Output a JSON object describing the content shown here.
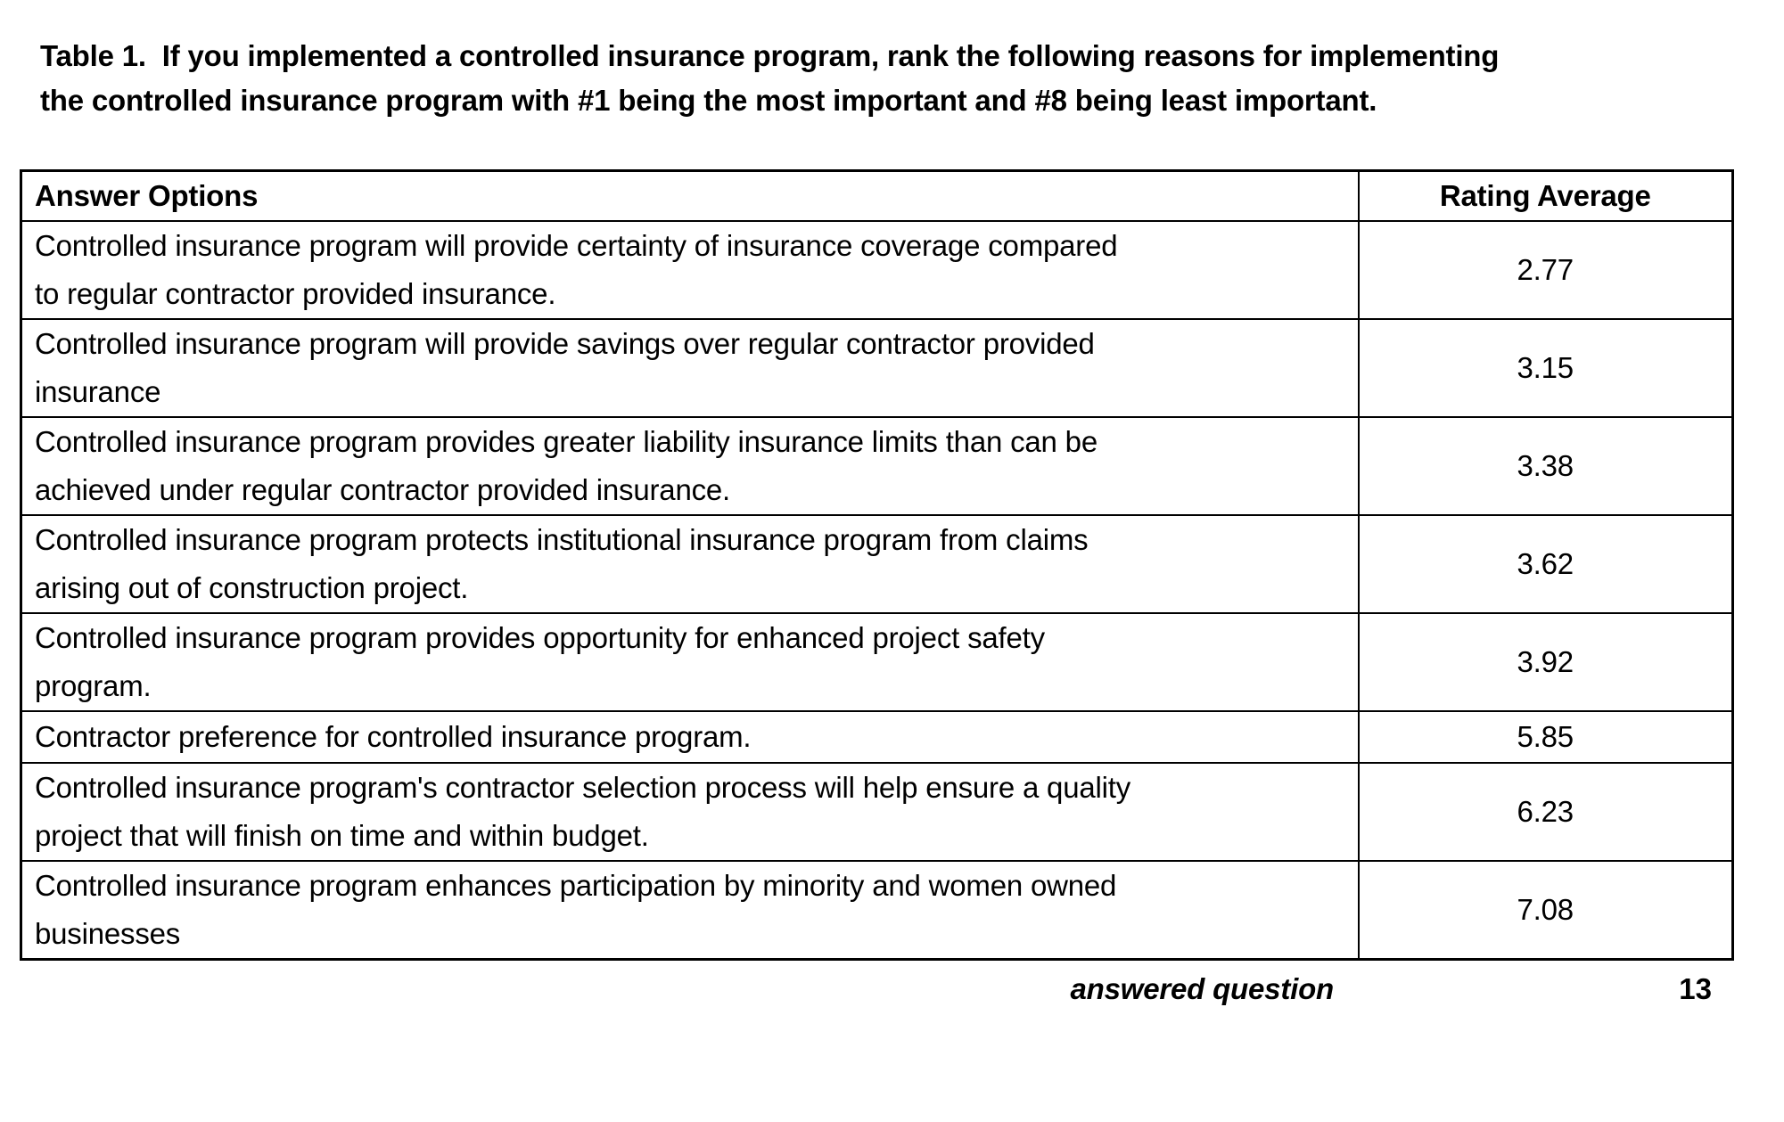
{
  "page": {
    "background_color": "#ffffff",
    "text_color": "#000000",
    "border_color": "#000000"
  },
  "title": "Table 1.  If you implemented a controlled insurance program, rank the following reasons for implementing\nthe controlled insurance program with #1 being the most important and #8 being least important.",
  "table": {
    "headers": {
      "answer_options": "Answer Options",
      "rating_average": "Rating Average"
    },
    "rows": [
      {
        "option": "Controlled insurance program will provide certainty of insurance coverage compared\nto regular contractor provided insurance.",
        "rating": "2.77"
      },
      {
        "option": "Controlled insurance program will provide savings over regular contractor provided\ninsurance",
        "rating": "3.15"
      },
      {
        "option": "Controlled insurance program provides greater liability insurance limits than can be\nachieved under regular contractor provided insurance.",
        "rating": "3.38"
      },
      {
        "option": "Controlled insurance program protects institutional insurance program from claims\narising out of construction project.",
        "rating": "3.62"
      },
      {
        "option": "Controlled insurance program provides opportunity for enhanced project safety\nprogram.",
        "rating": "3.92"
      },
      {
        "option": "Contractor preference for controlled insurance program.",
        "rating": "5.85"
      },
      {
        "option": "Controlled insurance program's contractor selection process will help ensure a quality\nproject that will finish on time and within budget.",
        "rating": "6.23"
      },
      {
        "option": "Controlled insurance program enhances participation by minority and women owned\nbusinesses",
        "rating": "7.08"
      }
    ],
    "footer": {
      "label": "answered question",
      "value": "13"
    }
  }
}
